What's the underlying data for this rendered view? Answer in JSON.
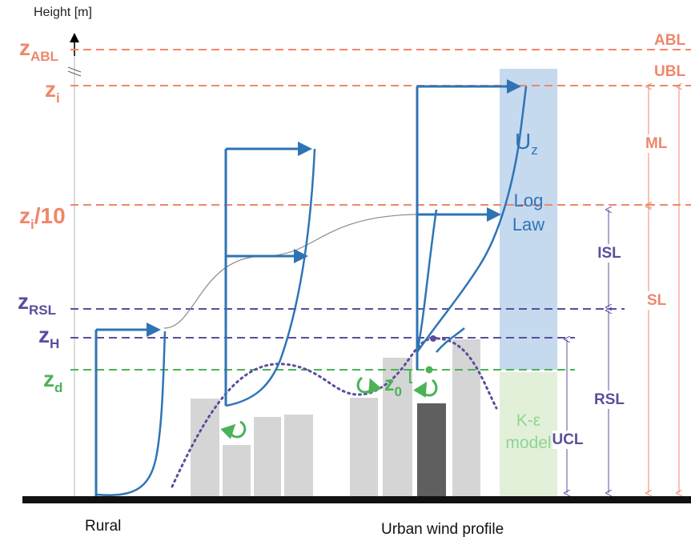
{
  "y_axis_label": "Height [m]",
  "levels": {
    "z_abl": {
      "main": "z",
      "sub": "ABL"
    },
    "z_i": {
      "main": "z",
      "sub": "i"
    },
    "z_i10": {
      "main": "z",
      "sub": "i",
      "suffix": "/10"
    },
    "z_rsl": {
      "main": "z",
      "sub": "RSL"
    },
    "z_h": {
      "main": "z",
      "sub": "H"
    },
    "z_d": {
      "main": "z",
      "sub": "d"
    },
    "z0": {
      "main": "z",
      "sub": "0"
    }
  },
  "layers": {
    "abl": "ABL",
    "ubl": "UBL",
    "ml": "ML",
    "sl": "SL",
    "isl": "ISL",
    "rsl": "RSL",
    "ucl": "UCL"
  },
  "boxes": {
    "uz": {
      "main": "U",
      "sub": "z"
    },
    "log_law": [
      "Log",
      "Law"
    ],
    "k_eps": [
      "K-ε",
      "model"
    ]
  },
  "bottom_labels": {
    "rural": "Rural",
    "urban": "Urban wind profile"
  },
  "colors": {
    "orange": "#f0876a",
    "purple": "#5a4e9c",
    "green": "#4cb257",
    "blue": "#2e74b5",
    "buildings": "#d5d5d5",
    "dark_building": "#5f5f5f",
    "log_box": "#c5d9ef",
    "keps_box": "#e2f0d9",
    "ground": "#111111"
  }
}
